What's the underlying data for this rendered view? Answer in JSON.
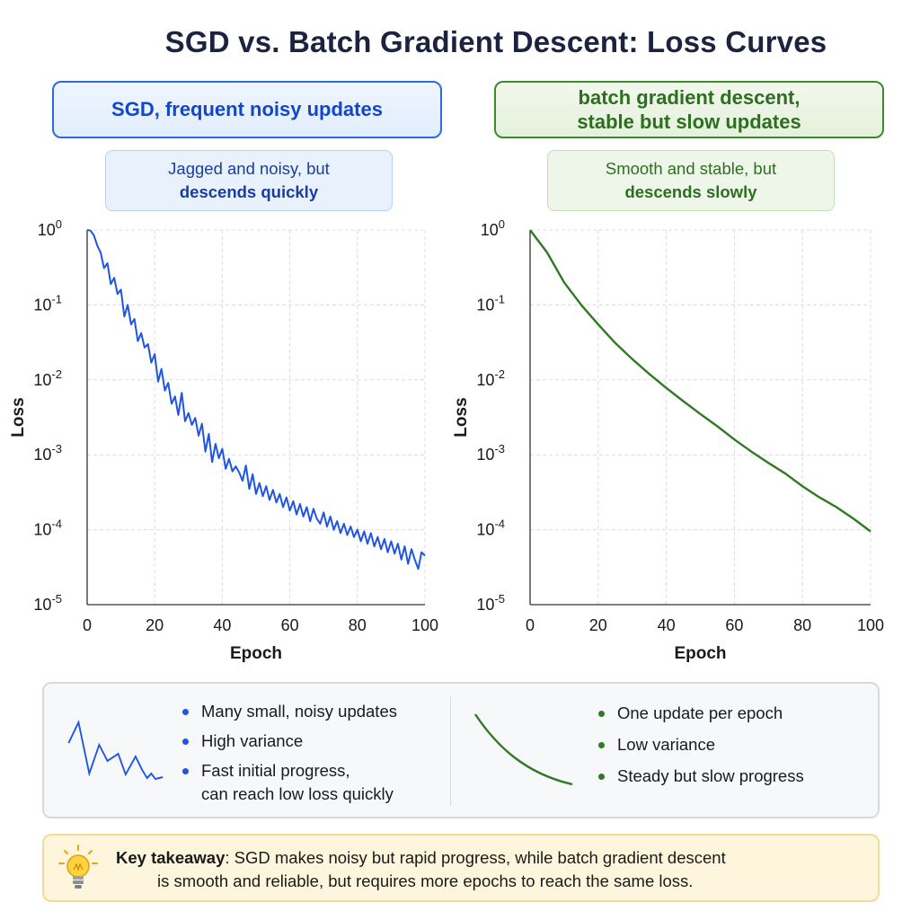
{
  "title": "SGD vs. Batch Gradient Descent: Loss Curves",
  "panels": {
    "left": {
      "method_label": "SGD, frequent noisy updates",
      "note_line1": "Jagged and noisy, but",
      "note_line2": "descends quickly"
    },
    "right": {
      "method_label_line1": "batch gradient descent,",
      "method_label_line2": "stable but slow updates",
      "note_line1": "Smooth and stable, but",
      "note_line2": "descends slowly"
    }
  },
  "colors": {
    "sgd": "#1f55e0",
    "batch": "#2f7a22",
    "grid": "#dcdcdc"
  },
  "chart_data": [
    {
      "type": "line",
      "xlabel": "Epoch",
      "ylabel": "Loss",
      "yscale": "log",
      "xlim": [
        0,
        100
      ],
      "ylim": [
        1e-05,
        1
      ],
      "xticks": [
        "0",
        "20",
        "40",
        "60",
        "80",
        "100"
      ],
      "yticks": [
        "10^0",
        "10^-1",
        "10^-2",
        "10^-3",
        "10^-4",
        "10^-5"
      ],
      "grid": true,
      "series": [
        {
          "color": "#1f55e0",
          "x": [
            0,
            1,
            2,
            3,
            4,
            5,
            6,
            7,
            8,
            9,
            10,
            11,
            12,
            13,
            14,
            15,
            16,
            17,
            18,
            19,
            20,
            21,
            22,
            23,
            24,
            25,
            26,
            27,
            28,
            29,
            30,
            31,
            32,
            33,
            34,
            35,
            36,
            37,
            38,
            39,
            40,
            41,
            42,
            43,
            44,
            45,
            46,
            47,
            48,
            49,
            50,
            51,
            52,
            53,
            54,
            55,
            56,
            57,
            58,
            59,
            60,
            61,
            62,
            63,
            64,
            65,
            66,
            67,
            68,
            69,
            70,
            71,
            72,
            73,
            74,
            75,
            76,
            77,
            78,
            79,
            80,
            81,
            82,
            83,
            84,
            85,
            86,
            87,
            88,
            89,
            90,
            91,
            92,
            93,
            94,
            95,
            96,
            97,
            98,
            99,
            100
          ],
          "y": [
            1.0,
            0.98,
            0.85,
            0.62,
            0.5,
            0.31,
            0.36,
            0.19,
            0.23,
            0.14,
            0.16,
            0.07,
            0.1,
            0.055,
            0.065,
            0.033,
            0.042,
            0.027,
            0.03,
            0.017,
            0.022,
            0.0095,
            0.014,
            0.0072,
            0.0091,
            0.0048,
            0.006,
            0.0034,
            0.0067,
            0.0028,
            0.0036,
            0.0025,
            0.0031,
            0.0018,
            0.0026,
            0.0011,
            0.0019,
            0.0008,
            0.0014,
            0.0009,
            0.0012,
            0.00065,
            0.00088,
            0.0006,
            0.0007,
            0.00058,
            0.00045,
            0.00072,
            0.00035,
            0.00055,
            0.0003,
            0.00042,
            0.00028,
            0.00038,
            0.00025,
            0.00034,
            0.00023,
            0.0003,
            0.0002,
            0.00027,
            0.00018,
            0.00024,
            0.00016,
            0.00022,
            0.00015,
            0.0002,
            0.00013,
            0.00019,
            0.00014,
            0.00012,
            0.00017,
            0.00011,
            0.00015,
            0.0001,
            0.00013,
            9e-05,
            0.00012,
            8.5e-05,
            0.00011,
            8e-05,
            0.0001,
            7e-05,
            9.5e-05,
            6.5e-05,
            9e-05,
            6e-05,
            8e-05,
            5.5e-05,
            7.5e-05,
            5e-05,
            7e-05,
            4.8e-05,
            6.5e-05,
            4e-05,
            6e-05,
            3.5e-05,
            5.5e-05,
            4e-05,
            3e-05,
            5e-05,
            4.5e-05
          ]
        }
      ]
    },
    {
      "type": "line",
      "xlabel": "Epoch",
      "ylabel": "Loss",
      "yscale": "log",
      "xlim": [
        0,
        100
      ],
      "ylim": [
        1e-05,
        1
      ],
      "xticks": [
        "0",
        "20",
        "40",
        "60",
        "80",
        "100"
      ],
      "yticks": [
        "10^0",
        "10^-1",
        "10^-2",
        "10^-3",
        "10^-4",
        "10^-5"
      ],
      "grid": true,
      "series": [
        {
          "color": "#2f7a22",
          "x": [
            0,
            5,
            10,
            15,
            20,
            25,
            30,
            35,
            40,
            45,
            50,
            55,
            60,
            65,
            70,
            75,
            80,
            85,
            90,
            95,
            100
          ],
          "y": [
            1.0,
            0.5,
            0.2,
            0.1,
            0.055,
            0.031,
            0.019,
            0.012,
            0.0078,
            0.0052,
            0.0035,
            0.0024,
            0.0016,
            0.0011,
            0.00078,
            0.00056,
            0.00038,
            0.00027,
            0.0002,
            0.00014,
            9.5e-05
          ]
        }
      ]
    }
  ],
  "legend": {
    "sgd_items": [
      "Many small, noisy updates",
      "High variance",
      "Fast initial progress,",
      "can reach low loss quickly"
    ],
    "batch_items": [
      "One update per epoch",
      "Low variance",
      "Steady but slow progress"
    ]
  },
  "takeaway": {
    "label": "Key takeaway",
    "line1": ": SGD makes noisy but rapid progress, while batch gradient descent",
    "line2": "is smooth and reliable, but requires more epochs to reach the same loss."
  }
}
